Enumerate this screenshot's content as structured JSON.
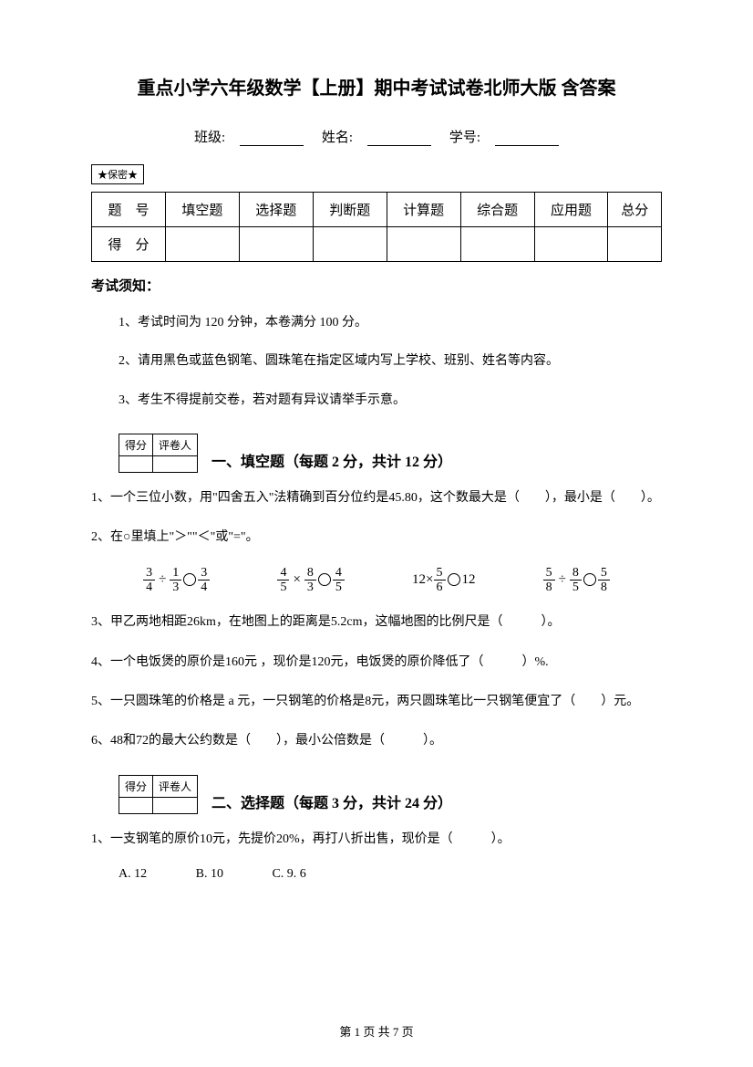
{
  "title": "重点小学六年级数学【上册】期中考试试卷北师大版 含答案",
  "info": {
    "class_label": "班级:",
    "name_label": "姓名:",
    "id_label": "学号:"
  },
  "secret_label": "★保密★",
  "score_table": {
    "headers": [
      "题　号",
      "填空题",
      "选择题",
      "判断题",
      "计算题",
      "综合题",
      "应用题",
      "总分"
    ],
    "row_label": "得　分"
  },
  "notice": {
    "header": "考试须知：",
    "items": [
      "1、考试时间为 120 分钟，本卷满分 100 分。",
      "2、请用黑色或蓝色钢笔、圆珠笔在指定区域内写上学校、班别、姓名等内容。",
      "3、考生不得提前交卷，若对题有异议请举手示意。"
    ]
  },
  "score_box": {
    "h1": "得分",
    "h2": "评卷人"
  },
  "section1": {
    "title": "一、填空题（每题 2 分，共计 12 分）",
    "q1": "1、一个三位小数，用\"四舍五入\"法精确到百分位约是45.80，这个数最大是（　　），最小是（　　）。",
    "q2": "2、在○里填上\"＞\"\"＜\"或\"=\"。",
    "q3": "3、甲乙两地相距26km，在地图上的距离是5.2cm，这幅地图的比例尺是（　　　）。",
    "q4": "4、一个电饭煲的原价是160元 ，现价是120元，电饭煲的原价降低了（　　　）%.",
    "q5": "5、一只圆珠笔的价格是 a 元，一只钢笔的价格是8元，两只圆珠笔比一只钢笔便宜了（　　）元。",
    "q6": "6、48和72的最大公约数是（　　），最小公倍数是（　　　）。"
  },
  "section2": {
    "title": "二、选择题（每题 3 分，共计 24 分）",
    "q1": "1、一支钢笔的原价10元，先提价20%，再打八折出售，现价是（　　　）。",
    "options": {
      "a": "A. 12",
      "b": "B. 10",
      "c": "C. 9. 6"
    }
  },
  "footer": "第 1 页 共 7 页"
}
